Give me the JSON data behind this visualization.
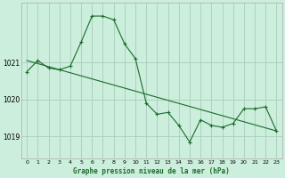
{
  "title": "Graphe pression niveau de la mer (hPa)",
  "bg_color": "#cceedd",
  "grid_color": "#aaccbb",
  "line_color": "#1a6b2a",
  "x_ticks": [
    0,
    1,
    2,
    3,
    4,
    5,
    6,
    7,
    8,
    9,
    10,
    11,
    12,
    13,
    14,
    15,
    16,
    17,
    18,
    19,
    20,
    21,
    22,
    23
  ],
  "y_ticks": [
    1019,
    1020,
    1021
  ],
  "ylim": [
    1018.4,
    1022.6
  ],
  "xlim": [
    -0.5,
    23.5
  ],
  "series1_x": [
    0,
    1,
    2,
    3,
    4,
    5,
    6,
    7,
    8,
    9,
    10,
    11,
    12,
    13,
    14,
    15,
    16,
    17,
    18,
    19,
    20,
    21,
    22,
    23
  ],
  "series1_y": [
    1020.75,
    1021.05,
    1020.85,
    1020.8,
    1020.9,
    1021.55,
    1022.25,
    1022.25,
    1022.15,
    1021.5,
    1021.1,
    1019.9,
    1019.6,
    1019.65,
    1019.3,
    1018.85,
    1019.45,
    1019.3,
    1019.25,
    1019.35,
    1019.75,
    1019.75,
    1019.8,
    1019.15
  ],
  "series2_x": [
    0,
    23
  ],
  "series2_y": [
    1021.05,
    1019.15
  ],
  "marker": "+"
}
